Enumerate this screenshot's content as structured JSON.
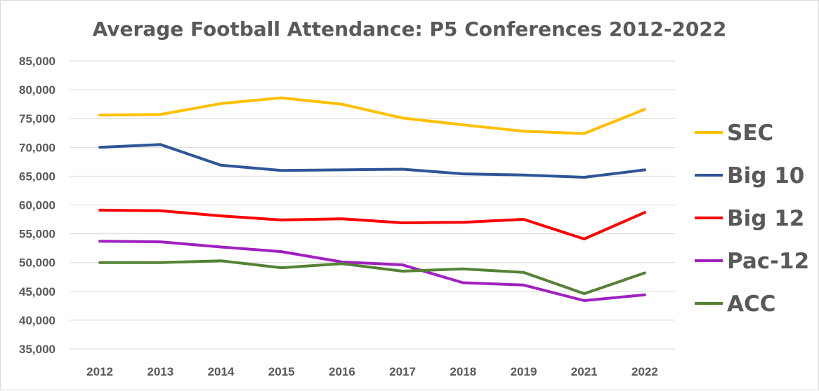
{
  "chart_data": {
    "type": "line",
    "title": "Average Football Attendance: P5 Conferences 2012-2022",
    "xlabel": "",
    "ylabel": "",
    "categories": [
      "2012",
      "2013",
      "2014",
      "2015",
      "2016",
      "2017",
      "2018",
      "2019",
      "2021",
      "2022"
    ],
    "ylim": [
      35000,
      85000
    ],
    "yticks": [
      "35,000",
      "40,000",
      "45,000",
      "50,000",
      "55,000",
      "60,000",
      "65,000",
      "70,000",
      "75,000",
      "80,000",
      "85,000"
    ],
    "grid": "horizontal",
    "legend_position": "right",
    "series": [
      {
        "name": "SEC",
        "color": "#FFC000",
        "values": [
          75600,
          75700,
          77600,
          78600,
          77500,
          75100,
          73900,
          72800,
          72400,
          76600
        ]
      },
      {
        "name": "Big 10",
        "color": "#2F5597",
        "values": [
          70000,
          70500,
          66900,
          66000,
          66100,
          66200,
          65400,
          65200,
          64800,
          66100
        ]
      },
      {
        "name": "Big 12",
        "color": "#FF0000",
        "values": [
          59100,
          59000,
          58100,
          57400,
          57600,
          56900,
          57000,
          57500,
          54100,
          58700
        ]
      },
      {
        "name": "Pac-12",
        "color": "#A020C0",
        "values": [
          53700,
          53600,
          52700,
          51900,
          50100,
          49600,
          46500,
          46100,
          43400,
          44400
        ]
      },
      {
        "name": "ACC",
        "color": "#548235",
        "values": [
          50000,
          50000,
          50300,
          49100,
          49800,
          48500,
          48900,
          48300,
          44600,
          48200
        ]
      }
    ]
  }
}
